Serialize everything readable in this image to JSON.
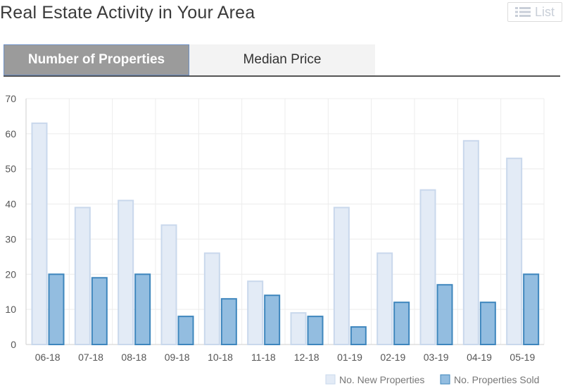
{
  "header": {
    "title": "Real Estate Activity in Your Area",
    "list_label": "List",
    "list_icon": "list-icon"
  },
  "tabs": [
    {
      "label": "Number of Properties",
      "active": true
    },
    {
      "label": "Median Price",
      "active": false
    }
  ],
  "colors": {
    "new_fill": "#e3ebf6",
    "new_stroke": "#c9d8ec",
    "sold_fill": "#93bde0",
    "sold_stroke": "#3e86bd",
    "grid": "#ececec"
  },
  "chart_data": {
    "type": "bar",
    "categories": [
      "06-18",
      "07-18",
      "08-18",
      "09-18",
      "10-18",
      "11-18",
      "12-18",
      "01-19",
      "02-19",
      "03-19",
      "04-19",
      "05-19"
    ],
    "series": [
      {
        "name": "No. New Properties",
        "values": [
          63,
          39,
          41,
          34,
          26,
          18,
          9,
          39,
          26,
          44,
          58,
          53
        ]
      },
      {
        "name": "No. Properties Sold",
        "values": [
          20,
          19,
          20,
          8,
          13,
          14,
          8,
          5,
          12,
          17,
          12,
          20
        ]
      }
    ],
    "ylim": [
      0,
      70
    ],
    "yticks": [
      0,
      10,
      20,
      30,
      40,
      50,
      60,
      70
    ],
    "grid": true,
    "legend": "bottom-right"
  }
}
